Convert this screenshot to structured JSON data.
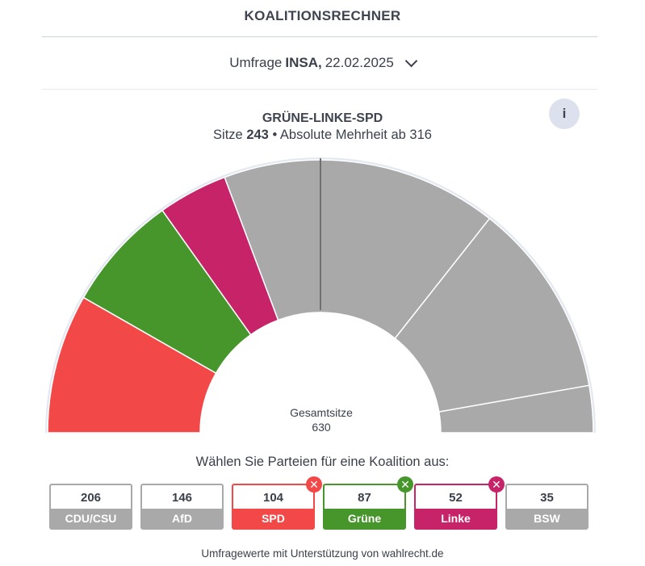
{
  "header": {
    "title": "KOALITIONSRECHNER"
  },
  "poll": {
    "prefix": "Umfrage",
    "institute": "INSA,",
    "date": "22.02.2025"
  },
  "coalition": {
    "name": "GRÜNE-LINKE-SPD",
    "seats_prefix": "Sitze",
    "seats": "243",
    "majority_text": "• Absolute Mehrheit ab 316"
  },
  "info": {
    "label": "i"
  },
  "chart_data": {
    "type": "pie",
    "shape": "semicircle",
    "total_label": "Gesamtsitze",
    "total_seats": "630",
    "majority_threshold": 316,
    "segments_order": [
      "SPD",
      "Grüne",
      "Linke",
      "CDU/CSU",
      "AfD",
      "BSW"
    ],
    "categories": [
      "CDU/CSU",
      "AfD",
      "SPD",
      "Grüne",
      "Linke",
      "BSW"
    ],
    "values": [
      206,
      146,
      104,
      87,
      52,
      35
    ],
    "selected": [
      false,
      false,
      true,
      true,
      true,
      false
    ],
    "colors": {
      "SPD": "#f24848",
      "Grüne": "#46962b",
      "Linke": "#c62368",
      "unselected": "#a9a9a9"
    }
  },
  "prompt": "Wählen Sie Parteien für eine Koalition aus:",
  "parties": [
    {
      "seats": "206",
      "name": "CDU/CSU",
      "selected": false,
      "color": "#a9a9a9"
    },
    {
      "seats": "146",
      "name": "AfD",
      "selected": false,
      "color": "#a9a9a9"
    },
    {
      "seats": "104",
      "name": "SPD",
      "selected": true,
      "color": "#f24848"
    },
    {
      "seats": "87",
      "name": "Grüne",
      "selected": true,
      "color": "#46962b"
    },
    {
      "seats": "52",
      "name": "Linke",
      "selected": true,
      "color": "#c62368"
    },
    {
      "seats": "35",
      "name": "BSW",
      "selected": false,
      "color": "#a9a9a9"
    }
  ],
  "footer": "Umfragewerte mit Unterstützung von wahlrecht.de"
}
